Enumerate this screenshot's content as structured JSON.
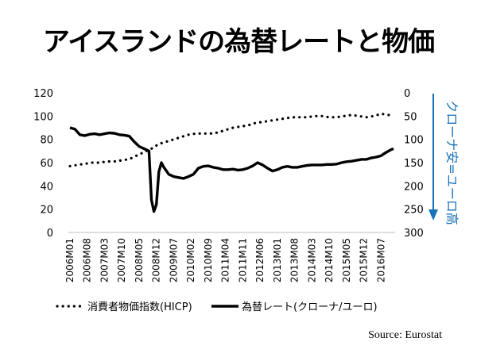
{
  "title": "アイスランドの為替レートと物価",
  "source": "Source: Eurostat",
  "chart_data": {
    "type": "line",
    "title": "アイスランドの為替レートと物価",
    "x_tick_labels": [
      "2006M01",
      "2006M08",
      "2007M03",
      "2007M10",
      "2008M05",
      "2008M12",
      "2009M07",
      "2010M02",
      "2010M09",
      "2011M04",
      "2011M11",
      "2012M06",
      "2013M01",
      "2013M08",
      "2014M03",
      "2014M10",
      "2015M05",
      "2015M12",
      "2016M07"
    ],
    "x_range": [
      "2006M01",
      "2016M12"
    ],
    "left_axis": {
      "range": [
        0,
        120
      ],
      "ticks": [
        0,
        20,
        40,
        60,
        80,
        100,
        120
      ]
    },
    "right_axis": {
      "range": [
        0,
        300
      ],
      "ticks": [
        0,
        50,
        100,
        150,
        200,
        250,
        300
      ],
      "inverted": true,
      "label": "クローナ安=ユーロ高"
    },
    "grid": false,
    "legend_position": "bottom",
    "series": [
      {
        "name": "消費者物価指数(HICP)",
        "axis": "left",
        "style": "dotted",
        "points": [
          [
            "2006M01",
            57
          ],
          [
            "2006M04",
            58
          ],
          [
            "2006M07",
            59
          ],
          [
            "2006M10",
            60
          ],
          [
            "2007M01",
            60
          ],
          [
            "2007M04",
            61
          ],
          [
            "2007M07",
            61
          ],
          [
            "2007M10",
            62
          ],
          [
            "2008M01",
            63
          ],
          [
            "2008M04",
            66
          ],
          [
            "2008M07",
            69
          ],
          [
            "2008M10",
            72
          ],
          [
            "2009M01",
            76
          ],
          [
            "2009M04",
            78
          ],
          [
            "2009M07",
            80
          ],
          [
            "2009M10",
            82
          ],
          [
            "2010M01",
            84
          ],
          [
            "2010M04",
            85
          ],
          [
            "2010M07",
            85
          ],
          [
            "2010M10",
            85
          ],
          [
            "2011M01",
            86
          ],
          [
            "2011M04",
            88
          ],
          [
            "2011M07",
            90
          ],
          [
            "2011M10",
            91
          ],
          [
            "2012M01",
            92
          ],
          [
            "2012M04",
            94
          ],
          [
            "2012M07",
            95
          ],
          [
            "2012M10",
            96
          ],
          [
            "2013M01",
            97
          ],
          [
            "2013M04",
            98
          ],
          [
            "2013M07",
            99
          ],
          [
            "2013M10",
            99
          ],
          [
            "2014M01",
            99
          ],
          [
            "2014M04",
            100
          ],
          [
            "2014M07",
            100
          ],
          [
            "2014M10",
            99
          ],
          [
            "2015M01",
            99
          ],
          [
            "2015M04",
            100
          ],
          [
            "2015M07",
            101
          ],
          [
            "2015M10",
            100
          ],
          [
            "2016M01",
            99
          ],
          [
            "2016M04",
            100
          ],
          [
            "2016M07",
            102
          ],
          [
            "2016M10",
            101
          ],
          [
            "2016M12",
            100
          ]
        ]
      },
      {
        "name": "為替レート(クローナ/ユーロ)",
        "axis": "right",
        "style": "solid",
        "points": [
          [
            "2006M01",
            75
          ],
          [
            "2006M03",
            78
          ],
          [
            "2006M05",
            90
          ],
          [
            "2006M07",
            92
          ],
          [
            "2006M09",
            89
          ],
          [
            "2006M11",
            88
          ],
          [
            "2007M01",
            90
          ],
          [
            "2007M03",
            88
          ],
          [
            "2007M05",
            86
          ],
          [
            "2007M07",
            87
          ],
          [
            "2007M09",
            90
          ],
          [
            "2007M11",
            91
          ],
          [
            "2008M01",
            93
          ],
          [
            "2008M03",
            105
          ],
          [
            "2008M05",
            115
          ],
          [
            "2008M07",
            120
          ],
          [
            "2008M09",
            125
          ],
          [
            "2008M10",
            230
          ],
          [
            "2008M11",
            255
          ],
          [
            "2008M12",
            240
          ],
          [
            "2009M01",
            170
          ],
          [
            "2009M02",
            150
          ],
          [
            "2009M03",
            160
          ],
          [
            "2009M05",
            175
          ],
          [
            "2009M07",
            180
          ],
          [
            "2009M09",
            182
          ],
          [
            "2009M11",
            184
          ],
          [
            "2010M01",
            180
          ],
          [
            "2010M03",
            175
          ],
          [
            "2010M05",
            162
          ],
          [
            "2010M07",
            158
          ],
          [
            "2010M09",
            157
          ],
          [
            "2010M11",
            160
          ],
          [
            "2011M01",
            162
          ],
          [
            "2011M03",
            165
          ],
          [
            "2011M05",
            165
          ],
          [
            "2011M07",
            164
          ],
          [
            "2011M09",
            166
          ],
          [
            "2011M11",
            165
          ],
          [
            "2012M01",
            162
          ],
          [
            "2012M03",
            157
          ],
          [
            "2012M05",
            150
          ],
          [
            "2012M07",
            155
          ],
          [
            "2012M09",
            162
          ],
          [
            "2012M11",
            168
          ],
          [
            "2013M01",
            165
          ],
          [
            "2013M03",
            160
          ],
          [
            "2013M05",
            158
          ],
          [
            "2013M07",
            160
          ],
          [
            "2013M09",
            160
          ],
          [
            "2013M11",
            158
          ],
          [
            "2014M01",
            156
          ],
          [
            "2014M03",
            155
          ],
          [
            "2014M05",
            155
          ],
          [
            "2014M07",
            155
          ],
          [
            "2014M09",
            154
          ],
          [
            "2014M11",
            154
          ],
          [
            "2015M01",
            153
          ],
          [
            "2015M03",
            150
          ],
          [
            "2015M05",
            148
          ],
          [
            "2015M07",
            147
          ],
          [
            "2015M09",
            145
          ],
          [
            "2015M11",
            143
          ],
          [
            "2016M01",
            143
          ],
          [
            "2016M03",
            140
          ],
          [
            "2016M05",
            138
          ],
          [
            "2016M07",
            135
          ],
          [
            "2016M09",
            128
          ],
          [
            "2016M11",
            122
          ],
          [
            "2016M12",
            120
          ]
        ]
      }
    ]
  }
}
